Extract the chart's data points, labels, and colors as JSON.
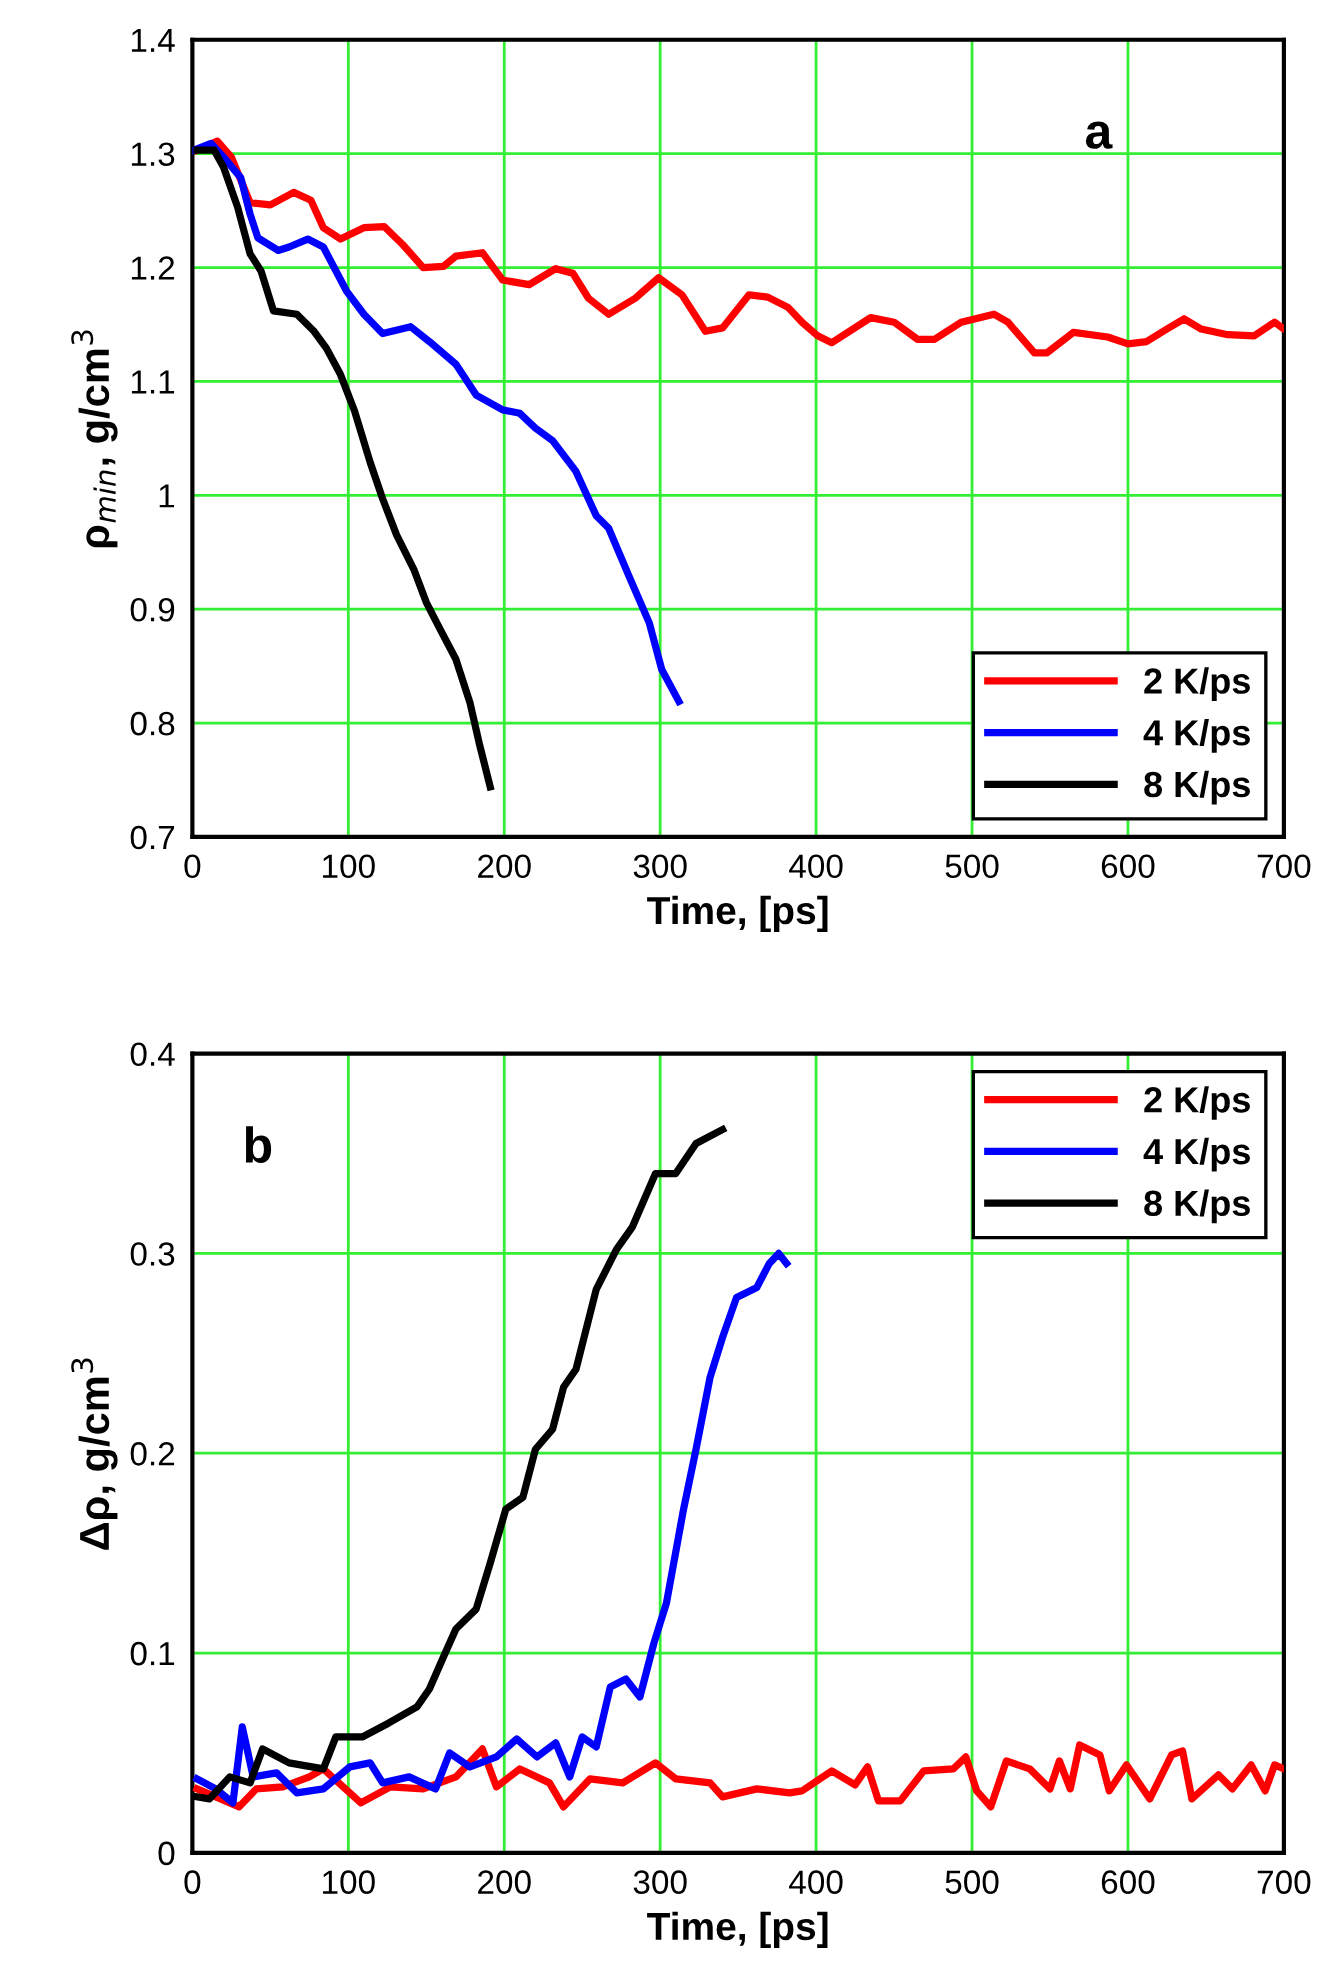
{
  "chart_data": [
    {
      "type": "line",
      "xlabel": "Time, [ps]",
      "ylabel": "ρ$_{min}$, g/cm$^{3}$",
      "annotations": [
        "a"
      ],
      "xlim": [
        0,
        700
      ],
      "xticks": [
        0,
        100,
        200,
        300,
        400,
        500,
        600,
        700
      ],
      "ylim": [
        0.7,
        1.4
      ],
      "yticks": [
        0.7,
        0.8,
        0.9,
        1,
        1.1,
        1.2,
        1.3,
        1.4
      ],
      "grid": true,
      "legend": "bottom right",
      "marker": "none",
      "line_style": "solid",
      "series": [
        {
          "name": "2 K/ps",
          "color": "#ff0000",
          "x": [
            3,
            16,
            25,
            37,
            50,
            65,
            76,
            84,
            95,
            110,
            123,
            135,
            148,
            161,
            169,
            186,
            199,
            216,
            233,
            244,
            254,
            267,
            284,
            299,
            314,
            329,
            340,
            357,
            369,
            382,
            391,
            401,
            410,
            435,
            450,
            465,
            476,
            493,
            514,
            523,
            540,
            548,
            565,
            587,
            600,
            612,
            625,
            636,
            647,
            664,
            681,
            694,
            699
          ],
          "values": [
            1.303,
            1.311,
            1.297,
            1.257,
            1.255,
            1.266,
            1.259,
            1.235,
            1.225,
            1.235,
            1.236,
            1.22,
            1.2,
            1.201,
            1.21,
            1.213,
            1.189,
            1.185,
            1.199,
            1.195,
            1.173,
            1.159,
            1.173,
            1.191,
            1.176,
            1.144,
            1.147,
            1.176,
            1.174,
            1.165,
            1.152,
            1.14,
            1.134,
            1.156,
            1.152,
            1.137,
            1.137,
            1.152,
            1.159,
            1.152,
            1.125,
            1.125,
            1.143,
            1.139,
            1.133,
            1.135,
            1.146,
            1.155,
            1.146,
            1.141,
            1.14,
            1.152,
            1.147
          ]
        },
        {
          "name": "4 K/ps",
          "color": "#0000ff",
          "x": [
            1,
            12,
            20,
            31,
            37,
            42,
            55,
            62,
            74,
            84,
            99,
            110,
            122,
            140,
            152,
            169,
            182,
            199,
            210,
            220,
            231,
            246,
            259,
            267,
            280,
            293,
            301,
            312
          ],
          "values": [
            1.303,
            1.309,
            1.297,
            1.279,
            1.247,
            1.226,
            1.215,
            1.218,
            1.225,
            1.218,
            1.179,
            1.159,
            1.142,
            1.148,
            1.135,
            1.115,
            1.088,
            1.075,
            1.072,
            1.059,
            1.048,
            1.021,
            0.982,
            0.971,
            0.929,
            0.888,
            0.847,
            0.819
          ]
        },
        {
          "name": "8 K/ps",
          "color": "#000000",
          "x": [
            3,
            14,
            20,
            29,
            37,
            44,
            52,
            67,
            78,
            86,
            95,
            104,
            114,
            122,
            131,
            142,
            150,
            159,
            169,
            178,
            184,
            191
          ],
          "values": [
            1.303,
            1.303,
            1.288,
            1.253,
            1.212,
            1.197,
            1.162,
            1.159,
            1.144,
            1.129,
            1.106,
            1.074,
            1.029,
            0.997,
            0.965,
            0.935,
            0.906,
            0.882,
            0.856,
            0.818,
            0.782,
            0.744
          ]
        }
      ]
    },
    {
      "type": "line",
      "xlabel": "Time, [ps]",
      "ylabel": "Δρ, g/cm$^{3}$",
      "annotations": [
        "b"
      ],
      "xlim": [
        0,
        700
      ],
      "xticks": [
        0,
        100,
        200,
        300,
        400,
        500,
        600,
        700
      ],
      "ylim": [
        0,
        0.4
      ],
      "yticks": [
        0,
        0.1,
        0.2,
        0.3,
        0.4
      ],
      "grid": true,
      "legend": "top right",
      "marker": "none",
      "line_style": "solid",
      "series": [
        {
          "name": "2 K/ps",
          "color": "#ff0000",
          "x": [
            3,
            15,
            30,
            41,
            58,
            75,
            84,
            108,
            127,
            148,
            169,
            186,
            195,
            210,
            229,
            238,
            255,
            276,
            297,
            310,
            332,
            340,
            362,
            383,
            391,
            410,
            425,
            433,
            440,
            454,
            469,
            488,
            496,
            503,
            512,
            522,
            537,
            550,
            556,
            563,
            569,
            582,
            588,
            599,
            614,
            628,
            635,
            641,
            658,
            667,
            679,
            688,
            694,
            700
          ],
          "values": [
            0.032,
            0.028,
            0.023,
            0.032,
            0.033,
            0.038,
            0.042,
            0.025,
            0.033,
            0.032,
            0.038,
            0.052,
            0.033,
            0.042,
            0.035,
            0.023,
            0.037,
            0.035,
            0.045,
            0.037,
            0.035,
            0.028,
            0.032,
            0.03,
            0.031,
            0.041,
            0.034,
            0.043,
            0.026,
            0.026,
            0.041,
            0.042,
            0.048,
            0.031,
            0.023,
            0.046,
            0.042,
            0.032,
            0.046,
            0.032,
            0.054,
            0.049,
            0.031,
            0.044,
            0.027,
            0.049,
            0.051,
            0.027,
            0.039,
            0.032,
            0.044,
            0.031,
            0.044,
            0.042
          ]
        },
        {
          "name": "4 K/ps",
          "color": "#0000ff",
          "x": [
            3,
            15,
            26,
            32,
            39,
            54,
            67,
            84,
            101,
            114,
            122,
            139,
            156,
            165,
            178,
            195,
            208,
            221,
            233,
            242,
            250,
            259,
            268,
            278,
            287,
            296,
            304,
            315,
            323,
            332,
            340,
            349,
            362,
            370,
            376,
            381
          ],
          "values": [
            0.037,
            0.032,
            0.025,
            0.063,
            0.038,
            0.04,
            0.03,
            0.032,
            0.043,
            0.045,
            0.035,
            0.038,
            0.032,
            0.05,
            0.043,
            0.048,
            0.057,
            0.048,
            0.055,
            0.038,
            0.058,
            0.053,
            0.083,
            0.087,
            0.078,
            0.105,
            0.125,
            0.172,
            0.202,
            0.238,
            0.258,
            0.278,
            0.283,
            0.295,
            0.3,
            0.295
          ]
        },
        {
          "name": "8 K/ps",
          "color": "#000000",
          "x": [
            3,
            11,
            24,
            37,
            45,
            62,
            84,
            92,
            109,
            126,
            144,
            152,
            161,
            169,
            182,
            191,
            201,
            212,
            220,
            231,
            238,
            246,
            259,
            272,
            282,
            297,
            310,
            323,
            340
          ],
          "values": [
            0.028,
            0.027,
            0.038,
            0.035,
            0.052,
            0.045,
            0.042,
            0.058,
            0.058,
            0.065,
            0.073,
            0.082,
            0.098,
            0.112,
            0.122,
            0.145,
            0.172,
            0.178,
            0.202,
            0.212,
            0.233,
            0.242,
            0.282,
            0.302,
            0.313,
            0.34,
            0.34,
            0.355,
            0.362
          ]
        }
      ]
    }
  ]
}
